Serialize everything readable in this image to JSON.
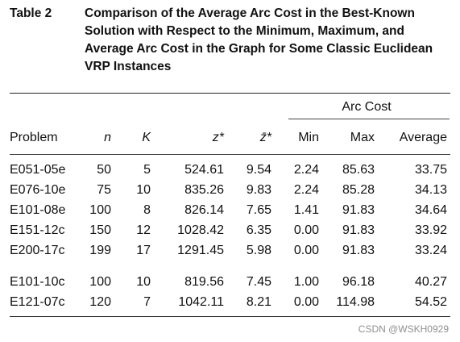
{
  "table": {
    "label": "Table 2",
    "caption_lines": [
      "Comparison of the Average Arc Cost in the Best-Known",
      "Solution with Respect to the Minimum, Maximum, and",
      "Average Arc Cost in the Graph for Some Classic Euclidean",
      "VRP Instances"
    ],
    "group_header": "Arc Cost",
    "columns": [
      "Problem",
      "n",
      "K",
      "z*",
      "z̄*",
      "Min",
      "Max",
      "Average"
    ],
    "rows": [
      [
        "E051-05e",
        "50",
        "5",
        "524.61",
        "9.54",
        "2.24",
        "85.63",
        "33.75"
      ],
      [
        "E076-10e",
        "75",
        "10",
        "835.26",
        "9.83",
        "2.24",
        "85.28",
        "34.13"
      ],
      [
        "E101-08e",
        "100",
        "8",
        "826.14",
        "7.65",
        "1.41",
        "91.83",
        "34.64"
      ],
      [
        "E151-12c",
        "150",
        "12",
        "1028.42",
        "6.35",
        "0.00",
        "91.83",
        "33.92"
      ],
      [
        "E200-17c",
        "199",
        "17",
        "1291.45",
        "5.98",
        "0.00",
        "91.83",
        "33.24"
      ],
      [
        "E101-10c",
        "100",
        "10",
        "819.56",
        "7.45",
        "1.00",
        "96.18",
        "40.27"
      ],
      [
        "E121-07c",
        "120",
        "7",
        "1042.11",
        "8.21",
        "0.00",
        "114.98",
        "54.52"
      ]
    ]
  },
  "watermark": "CSDN @WSKH0929"
}
